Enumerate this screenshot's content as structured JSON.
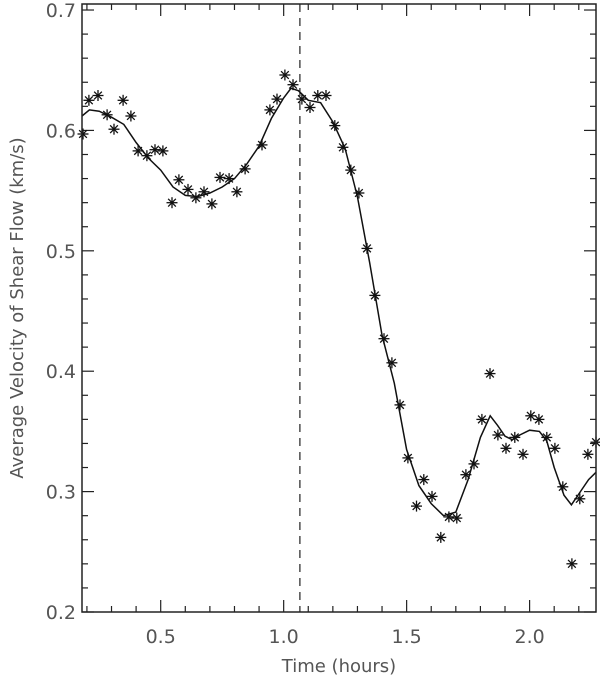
{
  "chart_data": {
    "type": "scatter",
    "title": "",
    "xlabel": "Time (hours)",
    "ylabel": "Average Velocity of Shear Flow (km/s)",
    "xlim": [
      0.18,
      2.27
    ],
    "ylim": [
      0.2,
      0.705
    ],
    "xticks": [
      0.5,
      1.0,
      1.5,
      2.0
    ],
    "xtick_labels": [
      "0.5",
      "1.0",
      "1.5",
      "2.0"
    ],
    "yticks": [
      0.2,
      0.3,
      0.4,
      0.5,
      0.6,
      0.7
    ],
    "ytick_labels": [
      "0.2",
      "0.3",
      "0.4",
      "0.5",
      "0.6",
      "0.7"
    ],
    "grid": false,
    "marker": "asterisk",
    "color": "#111111",
    "vertical_dashed_line_x": 1.066,
    "points": {
      "x": [
        0.184,
        0.208,
        0.245,
        0.282,
        0.31,
        0.347,
        0.379,
        0.408,
        0.444,
        0.477,
        0.509,
        0.546,
        0.574,
        0.611,
        0.643,
        0.676,
        0.708,
        0.741,
        0.778,
        0.81,
        0.843,
        0.912,
        0.944,
        0.973,
        1.005,
        1.038,
        1.074,
        1.107,
        1.139,
        1.172,
        1.208,
        1.241,
        1.273,
        1.306,
        1.339,
        1.371,
        1.408,
        1.44,
        1.473,
        1.505,
        1.54,
        1.57,
        1.603,
        1.639,
        1.672,
        1.704,
        1.741,
        1.774,
        1.806,
        1.839,
        1.871,
        1.904,
        1.94,
        1.973,
        2.005,
        2.038,
        2.07,
        2.103,
        2.135,
        2.172,
        2.204,
        2.237,
        2.27
      ],
      "y": [
        0.597,
        0.625,
        0.629,
        0.613,
        0.601,
        0.625,
        0.612,
        0.583,
        0.579,
        0.584,
        0.583,
        0.54,
        0.559,
        0.551,
        0.544,
        0.549,
        0.539,
        0.561,
        0.56,
        0.549,
        0.568,
        0.588,
        0.617,
        0.626,
        0.646,
        0.638,
        0.626,
        0.619,
        0.629,
        0.629,
        0.604,
        0.586,
        0.567,
        0.548,
        0.502,
        0.463,
        0.427,
        0.407,
        0.372,
        0.328,
        0.288,
        0.31,
        0.296,
        0.262,
        0.279,
        0.278,
        0.314,
        0.323,
        0.36,
        0.398,
        0.347,
        0.336,
        0.345,
        0.331,
        0.363,
        0.36,
        0.345,
        0.336,
        0.304,
        0.24,
        0.294,
        0.331,
        0.341
      ]
    },
    "smoothed_curve": {
      "x": [
        0.18,
        0.21,
        0.25,
        0.3,
        0.35,
        0.4,
        0.45,
        0.5,
        0.55,
        0.6,
        0.65,
        0.7,
        0.75,
        0.8,
        0.85,
        0.9,
        0.95,
        1.0,
        1.03,
        1.06,
        1.1,
        1.15,
        1.2,
        1.25,
        1.3,
        1.35,
        1.4,
        1.45,
        1.5,
        1.55,
        1.6,
        1.65,
        1.7,
        1.75,
        1.8,
        1.84,
        1.87,
        1.9,
        1.93,
        1.96,
        2.0,
        2.04,
        2.07,
        2.1,
        2.14,
        2.17,
        2.2,
        2.24,
        2.27
      ],
      "y": [
        0.612,
        0.617,
        0.616,
        0.611,
        0.605,
        0.59,
        0.577,
        0.567,
        0.553,
        0.546,
        0.545,
        0.548,
        0.553,
        0.56,
        0.572,
        0.587,
        0.61,
        0.627,
        0.635,
        0.633,
        0.625,
        0.623,
        0.607,
        0.585,
        0.545,
        0.49,
        0.43,
        0.39,
        0.335,
        0.305,
        0.29,
        0.28,
        0.283,
        0.31,
        0.345,
        0.363,
        0.355,
        0.346,
        0.343,
        0.347,
        0.351,
        0.35,
        0.342,
        0.32,
        0.297,
        0.289,
        0.298,
        0.31,
        0.316
      ]
    }
  }
}
